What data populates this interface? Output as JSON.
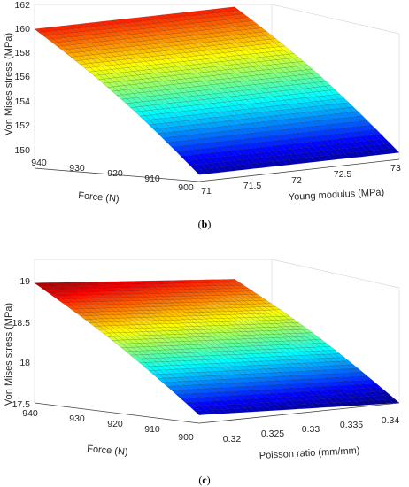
{
  "chart_data": [
    {
      "type": "surface",
      "caption": "(b)",
      "xlabel": "Force (N)",
      "ylabel": "Young modulus (MPa)",
      "zlabel": "Von Mises stress (MPa)",
      "x_range": [
        890,
        945
      ],
      "y_range": [
        70.7,
        73.0
      ],
      "zlim": [
        150,
        162
      ],
      "x_ticks": [
        "900",
        "910",
        "920",
        "930",
        "940"
      ],
      "y_ticks": [
        "71",
        "71.5",
        "72",
        "72.5",
        "73"
      ],
      "z_ticks": [
        "150",
        "152",
        "154",
        "156",
        "158",
        "160",
        "162"
      ],
      "colormap": "jet",
      "grid": true,
      "surface_corners": [
        {
          "x": 945,
          "y": 70.7,
          "z": 160.2
        },
        {
          "x": 945,
          "y": 73.0,
          "z": 160.2
        },
        {
          "x": 890,
          "y": 70.7,
          "z": 150.5
        },
        {
          "x": 890,
          "y": 73.0,
          "z": 150.5
        }
      ]
    },
    {
      "type": "surface",
      "caption": "(c)",
      "xlabel": "Force (N)",
      "ylabel": "Poisson ratio (mm/mm)",
      "zlabel": "Von Mises stress (MPa)",
      "x_range": [
        890,
        945
      ],
      "y_range": [
        0.318,
        0.343
      ],
      "zlim": [
        17.5,
        19
      ],
      "x_ticks": [
        "900",
        "910",
        "920",
        "930",
        "940"
      ],
      "y_ticks": [
        "0.32",
        "0.325",
        "0.33",
        "0.335",
        "0.34"
      ],
      "z_ticks": [
        "17.5",
        "18",
        "18.5",
        "19"
      ],
      "colormap": "jet",
      "grid": true,
      "surface_corners": [
        {
          "x": 945,
          "y": 0.318,
          "z": 18.95
        },
        {
          "x": 945,
          "y": 0.343,
          "z": 18.75
        },
        {
          "x": 890,
          "y": 0.318,
          "z": 17.6
        },
        {
          "x": 890,
          "y": 0.343,
          "z": 17.5
        }
      ]
    }
  ]
}
